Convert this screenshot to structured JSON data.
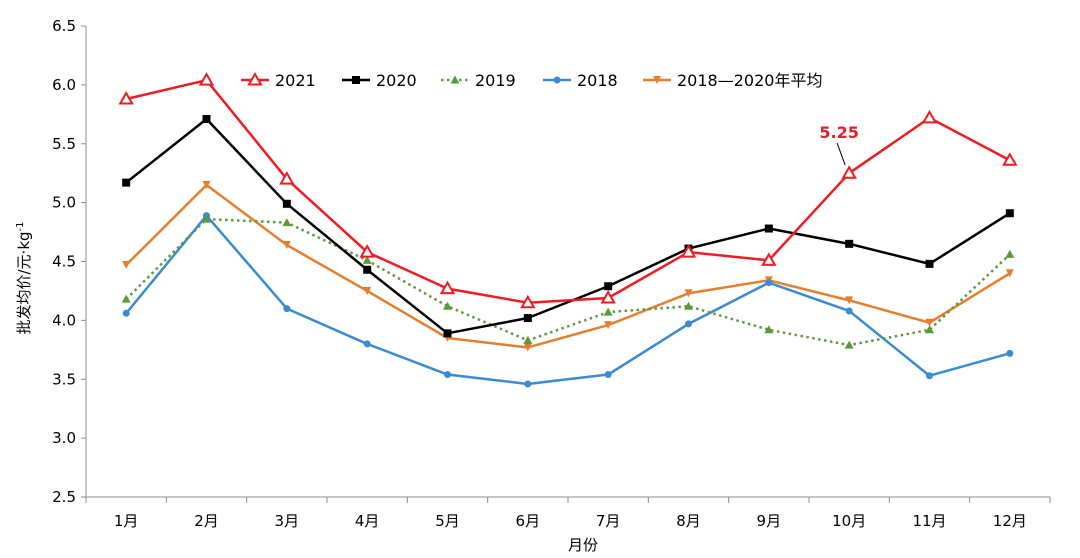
{
  "chart_data": {
    "type": "line",
    "title": "",
    "xlabel": "月份",
    "ylabel": "批发均价/元·kg",
    "ylabel_sup": "-1",
    "ylim": [
      2.5,
      6.5
    ],
    "yticks": [
      "2.5",
      "3.0",
      "3.5",
      "4.0",
      "4.5",
      "5.0",
      "5.5",
      "6.0",
      "6.5"
    ],
    "categories": [
      "1月",
      "2月",
      "3月",
      "4月",
      "5月",
      "6月",
      "7月",
      "8月",
      "9月",
      "10月",
      "11月",
      "12月"
    ],
    "grid": false,
    "legend_position": "top",
    "series": [
      {
        "name": "2021",
        "color": "#ee1c24",
        "marker": "triangle-open",
        "dash": "solid",
        "values": [
          5.88,
          6.04,
          5.2,
          4.58,
          4.27,
          4.15,
          4.19,
          4.58,
          4.51,
          5.25,
          5.72,
          5.36
        ]
      },
      {
        "name": "2020",
        "color": "#000000",
        "marker": "square",
        "dash": "solid",
        "values": [
          5.17,
          5.71,
          4.99,
          4.43,
          3.89,
          4.02,
          4.29,
          4.61,
          4.78,
          4.65,
          4.48,
          4.91
        ]
      },
      {
        "name": "2019",
        "color": "#5b9a3c",
        "marker": "triangle",
        "dash": "dotted",
        "values": [
          4.18,
          4.86,
          4.83,
          4.51,
          4.12,
          3.83,
          4.07,
          4.12,
          3.92,
          3.79,
          3.92,
          4.56
        ]
      },
      {
        "name": "2018",
        "color": "#3a8ad4",
        "marker": "circle",
        "dash": "solid",
        "values": [
          4.06,
          4.89,
          4.1,
          3.8,
          3.54,
          3.46,
          3.54,
          3.97,
          4.32,
          4.08,
          3.53,
          3.72
        ]
      },
      {
        "name": "2018—2020年平均",
        "color": "#e67e2e",
        "marker": "triangle-down",
        "dash": "solid",
        "values": [
          4.47,
          5.15,
          4.64,
          4.25,
          3.85,
          3.77,
          3.96,
          4.23,
          4.34,
          4.17,
          3.98,
          4.4
        ]
      }
    ],
    "annotations": [
      {
        "text": "5.25",
        "series": "2021",
        "category": "10月",
        "value": 5.25,
        "color": "#ee1c24"
      }
    ]
  }
}
